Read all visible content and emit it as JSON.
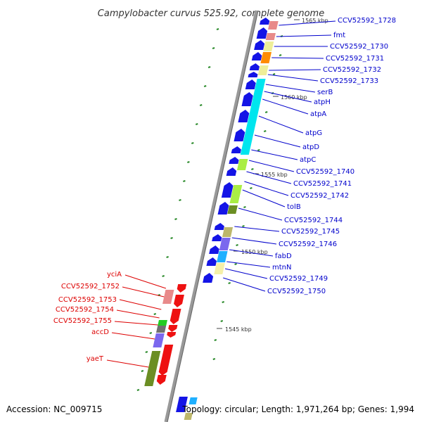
{
  "title": "Campylobacter curvus 525.92, complete genome",
  "footer": {
    "accession": "Accession: NC_009715",
    "topology": "Topology: circular; Length: 1,971,264 bp; Genes: 1,994"
  },
  "colors": {
    "plus_label": "#0000cc",
    "minus_label": "#dd0000",
    "backbone": "#999999",
    "plus_arrow": "#1414e6",
    "minus_arrow": "#ee1111",
    "rna_tick": "#2a8a2a",
    "cyan": "#00e5ee",
    "orange": "#ff8c00",
    "yellow": "#eeee99",
    "pink": "#e88a8a",
    "lime": "#aaee44",
    "olive": "#6b8e23",
    "purple": "#7b68ee",
    "khaki": "#bdb76b",
    "sky": "#1fb0ff",
    "cream": "#f5f0a8",
    "green": "#22cc22",
    "gray": "#707070"
  },
  "kbp_marks": [
    "1565 kbp",
    "1560 kbp",
    "1555 kbp",
    "1550 kbp",
    "1545 kbp"
  ],
  "plus_labels": [
    "CCV52592_1728",
    "fmt",
    "CCV52592_1730",
    "CCV52592_1731",
    "CCV52592_1732",
    "CCV52592_1733",
    "serB",
    "atpH",
    "atpA",
    "atpG",
    "atpD",
    "atpC",
    "CCV52592_1740",
    "CCV52592_1741",
    "CCV52592_1742",
    "tolB",
    "CCV52592_1744",
    "CCV52592_1745",
    "CCV52592_1746",
    "fabD",
    "mtnN",
    "CCV52592_1749",
    "CCV52592_1750"
  ],
  "minus_labels": [
    "yciA",
    "CCV52592_1752",
    "CCV52592_1753",
    "CCV52592_1754",
    "CCV52592_1755",
    "accD",
    "yaeT"
  ]
}
